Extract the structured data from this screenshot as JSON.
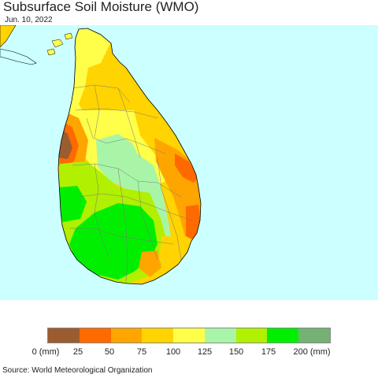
{
  "title": "Subsurface Soil Moisture (WMO)",
  "date": "Jun. 10, 2022",
  "legend": {
    "colors": [
      "#9b5c30",
      "#ff6a00",
      "#ffa500",
      "#ffd400",
      "#ffff4a",
      "#a8f5a8",
      "#b0f000",
      "#00ef00",
      "#73b273"
    ],
    "ticks": [
      "0 (mm)",
      "25",
      "50",
      "75",
      "100",
      "125",
      "150",
      "175",
      "200 (mm)"
    ]
  },
  "source": "Source: World Meteorological Organization",
  "map": {
    "ocean_color": "#ccffff",
    "regions": [
      "north-yellow",
      "north-orange",
      "west-brown-dry-spot",
      "east-orange-dry-coast",
      "central-pale-green",
      "south-west-green",
      "south-central-green"
    ]
  }
}
